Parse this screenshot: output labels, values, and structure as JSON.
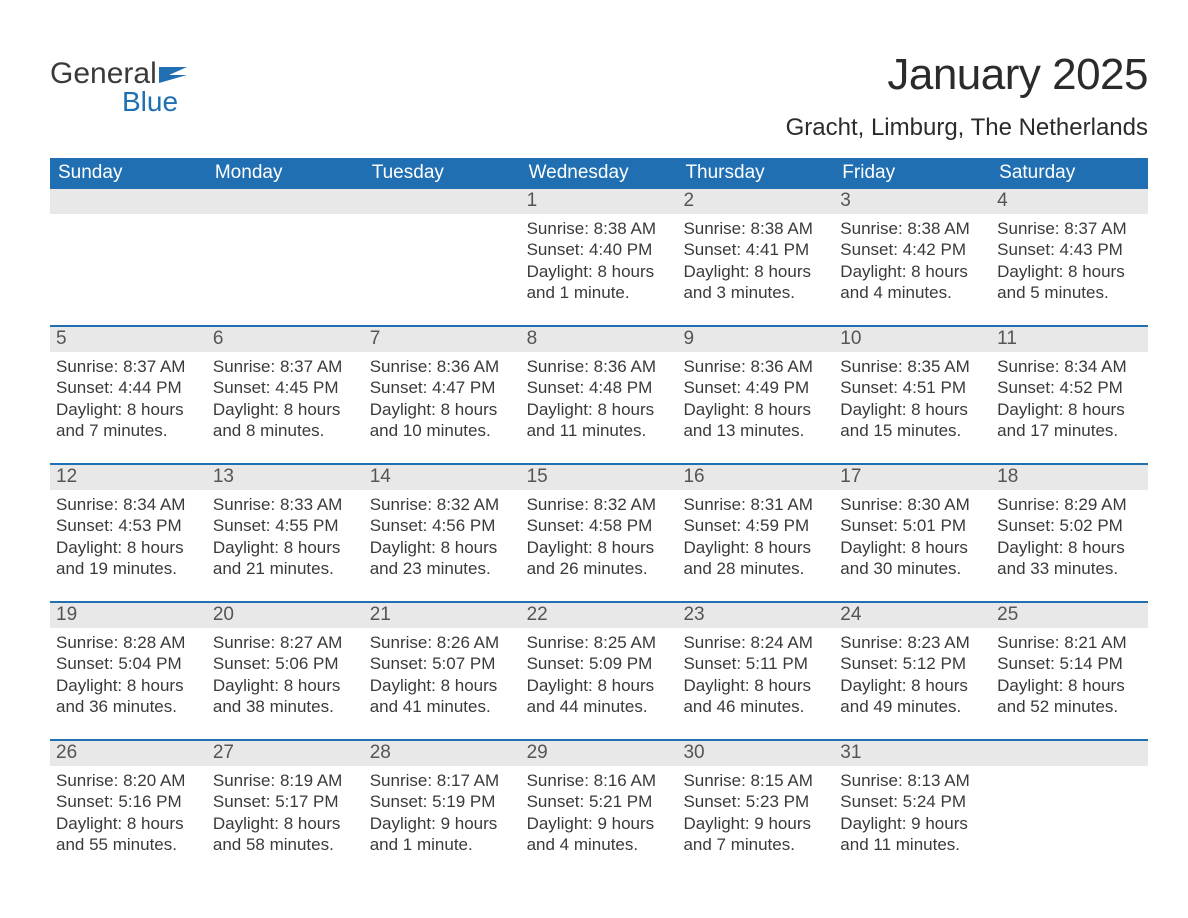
{
  "logo": {
    "word1": "General",
    "word2": "Blue"
  },
  "title": "January 2025",
  "location": "Gracht, Limburg, The Netherlands",
  "colors": {
    "header_bg": "#1f6fb2",
    "header_text": "#ffffff",
    "strip_bg": "#e8e8e8",
    "week_border": "#1f6fb2",
    "text": "#3a3a3a",
    "logo_blue": "#1f6fb2"
  },
  "day_headers": [
    "Sunday",
    "Monday",
    "Tuesday",
    "Wednesday",
    "Thursday",
    "Friday",
    "Saturday"
  ],
  "weeks": [
    [
      {
        "blank": true
      },
      {
        "blank": true
      },
      {
        "blank": true
      },
      {
        "day": "1",
        "sunrise": "Sunrise: 8:38 AM",
        "sunset": "Sunset: 4:40 PM",
        "daylight1": "Daylight: 8 hours",
        "daylight2": "and 1 minute."
      },
      {
        "day": "2",
        "sunrise": "Sunrise: 8:38 AM",
        "sunset": "Sunset: 4:41 PM",
        "daylight1": "Daylight: 8 hours",
        "daylight2": "and 3 minutes."
      },
      {
        "day": "3",
        "sunrise": "Sunrise: 8:38 AM",
        "sunset": "Sunset: 4:42 PM",
        "daylight1": "Daylight: 8 hours",
        "daylight2": "and 4 minutes."
      },
      {
        "day": "4",
        "sunrise": "Sunrise: 8:37 AM",
        "sunset": "Sunset: 4:43 PM",
        "daylight1": "Daylight: 8 hours",
        "daylight2": "and 5 minutes."
      }
    ],
    [
      {
        "day": "5",
        "sunrise": "Sunrise: 8:37 AM",
        "sunset": "Sunset: 4:44 PM",
        "daylight1": "Daylight: 8 hours",
        "daylight2": "and 7 minutes."
      },
      {
        "day": "6",
        "sunrise": "Sunrise: 8:37 AM",
        "sunset": "Sunset: 4:45 PM",
        "daylight1": "Daylight: 8 hours",
        "daylight2": "and 8 minutes."
      },
      {
        "day": "7",
        "sunrise": "Sunrise: 8:36 AM",
        "sunset": "Sunset: 4:47 PM",
        "daylight1": "Daylight: 8 hours",
        "daylight2": "and 10 minutes."
      },
      {
        "day": "8",
        "sunrise": "Sunrise: 8:36 AM",
        "sunset": "Sunset: 4:48 PM",
        "daylight1": "Daylight: 8 hours",
        "daylight2": "and 11 minutes."
      },
      {
        "day": "9",
        "sunrise": "Sunrise: 8:36 AM",
        "sunset": "Sunset: 4:49 PM",
        "daylight1": "Daylight: 8 hours",
        "daylight2": "and 13 minutes."
      },
      {
        "day": "10",
        "sunrise": "Sunrise: 8:35 AM",
        "sunset": "Sunset: 4:51 PM",
        "daylight1": "Daylight: 8 hours",
        "daylight2": "and 15 minutes."
      },
      {
        "day": "11",
        "sunrise": "Sunrise: 8:34 AM",
        "sunset": "Sunset: 4:52 PM",
        "daylight1": "Daylight: 8 hours",
        "daylight2": "and 17 minutes."
      }
    ],
    [
      {
        "day": "12",
        "sunrise": "Sunrise: 8:34 AM",
        "sunset": "Sunset: 4:53 PM",
        "daylight1": "Daylight: 8 hours",
        "daylight2": "and 19 minutes."
      },
      {
        "day": "13",
        "sunrise": "Sunrise: 8:33 AM",
        "sunset": "Sunset: 4:55 PM",
        "daylight1": "Daylight: 8 hours",
        "daylight2": "and 21 minutes."
      },
      {
        "day": "14",
        "sunrise": "Sunrise: 8:32 AM",
        "sunset": "Sunset: 4:56 PM",
        "daylight1": "Daylight: 8 hours",
        "daylight2": "and 23 minutes."
      },
      {
        "day": "15",
        "sunrise": "Sunrise: 8:32 AM",
        "sunset": "Sunset: 4:58 PM",
        "daylight1": "Daylight: 8 hours",
        "daylight2": "and 26 minutes."
      },
      {
        "day": "16",
        "sunrise": "Sunrise: 8:31 AM",
        "sunset": "Sunset: 4:59 PM",
        "daylight1": "Daylight: 8 hours",
        "daylight2": "and 28 minutes."
      },
      {
        "day": "17",
        "sunrise": "Sunrise: 8:30 AM",
        "sunset": "Sunset: 5:01 PM",
        "daylight1": "Daylight: 8 hours",
        "daylight2": "and 30 minutes."
      },
      {
        "day": "18",
        "sunrise": "Sunrise: 8:29 AM",
        "sunset": "Sunset: 5:02 PM",
        "daylight1": "Daylight: 8 hours",
        "daylight2": "and 33 minutes."
      }
    ],
    [
      {
        "day": "19",
        "sunrise": "Sunrise: 8:28 AM",
        "sunset": "Sunset: 5:04 PM",
        "daylight1": "Daylight: 8 hours",
        "daylight2": "and 36 minutes."
      },
      {
        "day": "20",
        "sunrise": "Sunrise: 8:27 AM",
        "sunset": "Sunset: 5:06 PM",
        "daylight1": "Daylight: 8 hours",
        "daylight2": "and 38 minutes."
      },
      {
        "day": "21",
        "sunrise": "Sunrise: 8:26 AM",
        "sunset": "Sunset: 5:07 PM",
        "daylight1": "Daylight: 8 hours",
        "daylight2": "and 41 minutes."
      },
      {
        "day": "22",
        "sunrise": "Sunrise: 8:25 AM",
        "sunset": "Sunset: 5:09 PM",
        "daylight1": "Daylight: 8 hours",
        "daylight2": "and 44 minutes."
      },
      {
        "day": "23",
        "sunrise": "Sunrise: 8:24 AM",
        "sunset": "Sunset: 5:11 PM",
        "daylight1": "Daylight: 8 hours",
        "daylight2": "and 46 minutes."
      },
      {
        "day": "24",
        "sunrise": "Sunrise: 8:23 AM",
        "sunset": "Sunset: 5:12 PM",
        "daylight1": "Daylight: 8 hours",
        "daylight2": "and 49 minutes."
      },
      {
        "day": "25",
        "sunrise": "Sunrise: 8:21 AM",
        "sunset": "Sunset: 5:14 PM",
        "daylight1": "Daylight: 8 hours",
        "daylight2": "and 52 minutes."
      }
    ],
    [
      {
        "day": "26",
        "sunrise": "Sunrise: 8:20 AM",
        "sunset": "Sunset: 5:16 PM",
        "daylight1": "Daylight: 8 hours",
        "daylight2": "and 55 minutes."
      },
      {
        "day": "27",
        "sunrise": "Sunrise: 8:19 AM",
        "sunset": "Sunset: 5:17 PM",
        "daylight1": "Daylight: 8 hours",
        "daylight2": "and 58 minutes."
      },
      {
        "day": "28",
        "sunrise": "Sunrise: 8:17 AM",
        "sunset": "Sunset: 5:19 PM",
        "daylight1": "Daylight: 9 hours",
        "daylight2": "and 1 minute."
      },
      {
        "day": "29",
        "sunrise": "Sunrise: 8:16 AM",
        "sunset": "Sunset: 5:21 PM",
        "daylight1": "Daylight: 9 hours",
        "daylight2": "and 4 minutes."
      },
      {
        "day": "30",
        "sunrise": "Sunrise: 8:15 AM",
        "sunset": "Sunset: 5:23 PM",
        "daylight1": "Daylight: 9 hours",
        "daylight2": "and 7 minutes."
      },
      {
        "day": "31",
        "sunrise": "Sunrise: 8:13 AM",
        "sunset": "Sunset: 5:24 PM",
        "daylight1": "Daylight: 9 hours",
        "daylight2": "and 11 minutes."
      },
      {
        "blank": true
      }
    ]
  ]
}
